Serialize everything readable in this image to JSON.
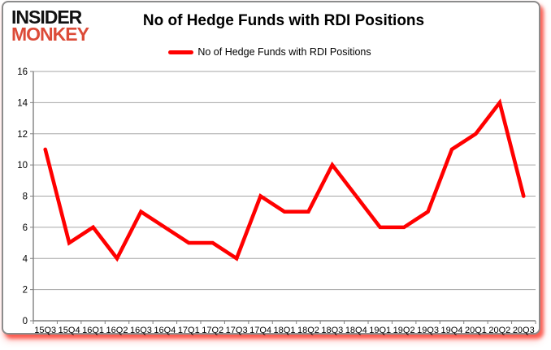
{
  "logo": {
    "line1": "INSIDER",
    "line2": "MONKEY"
  },
  "header": {
    "title": "No of Hedge Funds with RDI Positions"
  },
  "legend": {
    "label": "No of Hedge Funds with RDI Positions",
    "color": "#FF0000"
  },
  "colors": {
    "series": "#FF0000",
    "logo_red": "#DC4B38",
    "grid": "#A6A6A6",
    "axis": "#808080",
    "text": "#000000",
    "card_border": "#8C8C8C",
    "shadow": "#FF0000"
  },
  "chart_data": {
    "type": "line",
    "title": "No of Hedge Funds with RDI Positions",
    "categories": [
      "15Q3",
      "15Q4",
      "16Q1",
      "16Q2",
      "16Q3",
      "16Q4",
      "17Q1",
      "17Q2",
      "17Q3",
      "17Q4",
      "18Q1",
      "18Q2",
      "18Q3",
      "18Q4",
      "19Q1",
      "19Q2",
      "19Q3",
      "19Q4",
      "20Q1",
      "20Q2",
      "20Q3"
    ],
    "values": [
      11,
      5,
      6,
      4,
      7,
      6,
      5,
      5,
      4,
      8,
      7,
      7,
      10,
      8,
      6,
      6,
      7,
      11,
      12,
      14,
      8
    ],
    "xlabel": "",
    "ylabel": "",
    "ylim": [
      0,
      16
    ],
    "y_ticks": [
      0,
      2,
      4,
      6,
      8,
      10,
      12,
      14,
      16
    ],
    "grid": true,
    "legend_position": "top-center",
    "series": [
      {
        "name": "No of Hedge Funds with RDI Positions",
        "color": "#FF0000"
      }
    ]
  }
}
